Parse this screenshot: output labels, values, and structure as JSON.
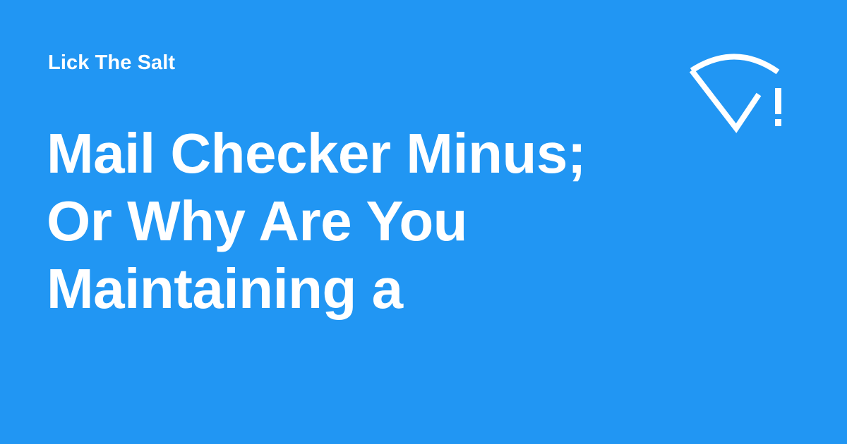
{
  "site": {
    "name": "Lick The Salt"
  },
  "post": {
    "title": "Mail Checker Minus; Or Why Are You Maintaining a"
  },
  "logo": {
    "icon": "salt-logo-icon"
  },
  "colors": {
    "background": "#2196F3",
    "text": "#FFFFFF"
  }
}
